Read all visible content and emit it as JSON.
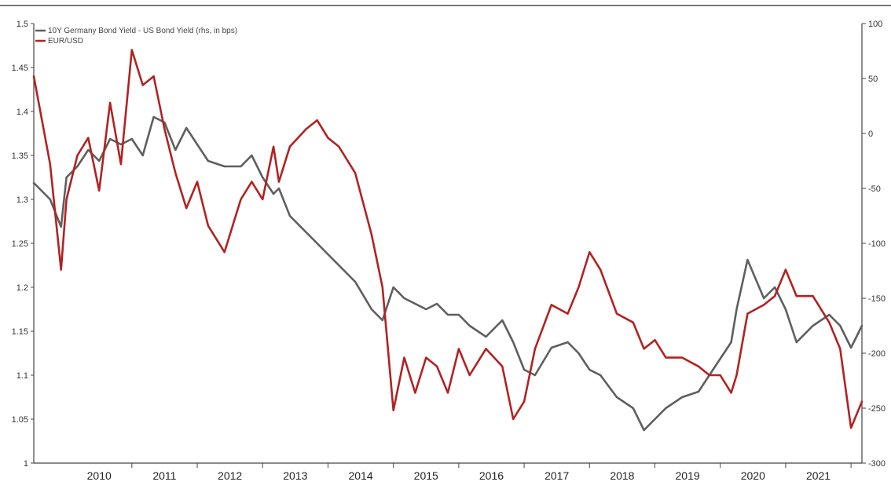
{
  "chart_data": {
    "type": "line",
    "title": "",
    "xlabel": "",
    "ylabel": "",
    "x_range": [
      "2009-07",
      "2022-03"
    ],
    "x_tick_labels": [
      "2010",
      "2011",
      "2012",
      "2013",
      "2014",
      "2015",
      "2016",
      "2017",
      "2018",
      "2019",
      "2020",
      "2021"
    ],
    "left_axis": {
      "range": [
        1,
        1.5
      ],
      "ticks": [
        "1",
        "1.05",
        "1.1",
        "1.15",
        "1.2",
        "1.25",
        "1.3",
        "1.35",
        "1.4",
        "1.45",
        "1.5"
      ]
    },
    "right_axis": {
      "range": [
        -300,
        100
      ],
      "ticks": [
        "100",
        "50",
        "0",
        "-50",
        "-100",
        "-150",
        "-200",
        "-250",
        "-300"
      ]
    },
    "grid": false,
    "legend_position": "top-left",
    "series": [
      {
        "name": "10Y Germany Bond Yield - US Bond Yield (rhs, in bps)",
        "axis": "right",
        "color": "#5f5f5f",
        "x": [
          "2009-07",
          "2009-10",
          "2009-12",
          "2010-01",
          "2010-03",
          "2010-05",
          "2010-07",
          "2010-09",
          "2010-11",
          "2011-01",
          "2011-03",
          "2011-05",
          "2011-07",
          "2011-09",
          "2011-11",
          "2012-01",
          "2012-03",
          "2012-06",
          "2012-09",
          "2012-11",
          "2013-01",
          "2013-03",
          "2013-04",
          "2013-06",
          "2013-09",
          "2013-11",
          "2014-01",
          "2014-03",
          "2014-06",
          "2014-09",
          "2014-11",
          "2015-01",
          "2015-03",
          "2015-05",
          "2015-07",
          "2015-09",
          "2015-11",
          "2016-01",
          "2016-03",
          "2016-06",
          "2016-09",
          "2016-11",
          "2017-01",
          "2017-03",
          "2017-06",
          "2017-09",
          "2017-11",
          "2018-01",
          "2018-03",
          "2018-06",
          "2018-09",
          "2018-11",
          "2019-01",
          "2019-03",
          "2019-06",
          "2019-09",
          "2019-11",
          "2020-01",
          "2020-03",
          "2020-04",
          "2020-06",
          "2020-09",
          "2020-11",
          "2021-01",
          "2021-03",
          "2021-06",
          "2021-09",
          "2021-11",
          "2022-01",
          "2022-03"
        ],
        "values": [
          -45,
          -60,
          -85,
          -40,
          -30,
          -15,
          -25,
          -5,
          -10,
          -5,
          -20,
          15,
          10,
          -15,
          5,
          -10,
          -25,
          -30,
          -30,
          -20,
          -40,
          -55,
          -50,
          -75,
          -90,
          -100,
          -110,
          -120,
          -135,
          -160,
          -170,
          -140,
          -150,
          -155,
          -160,
          -155,
          -165,
          -165,
          -175,
          -185,
          -170,
          -190,
          -215,
          -220,
          -195,
          -190,
          -200,
          -215,
          -220,
          -240,
          -250,
          -270,
          -260,
          -250,
          -240,
          -235,
          -220,
          -205,
          -190,
          -160,
          -115,
          -150,
          -140,
          -160,
          -190,
          -175,
          -165,
          -175,
          -195,
          -175
        ]
      },
      {
        "name": "EUR/USD",
        "axis": "left",
        "color": "#b22222",
        "x": [
          "2009-07",
          "2009-10",
          "2009-12",
          "2010-01",
          "2010-03",
          "2010-05",
          "2010-07",
          "2010-09",
          "2010-11",
          "2011-01",
          "2011-03",
          "2011-05",
          "2011-07",
          "2011-09",
          "2011-11",
          "2012-01",
          "2012-03",
          "2012-06",
          "2012-09",
          "2012-11",
          "2013-01",
          "2013-03",
          "2013-04",
          "2013-06",
          "2013-09",
          "2013-11",
          "2014-01",
          "2014-03",
          "2014-06",
          "2014-09",
          "2014-11",
          "2015-01",
          "2015-03",
          "2015-05",
          "2015-07",
          "2015-09",
          "2015-11",
          "2016-01",
          "2016-03",
          "2016-06",
          "2016-09",
          "2016-11",
          "2017-01",
          "2017-03",
          "2017-06",
          "2017-09",
          "2017-11",
          "2018-01",
          "2018-03",
          "2018-06",
          "2018-09",
          "2018-11",
          "2019-01",
          "2019-03",
          "2019-06",
          "2019-09",
          "2019-11",
          "2020-01",
          "2020-03",
          "2020-04",
          "2020-06",
          "2020-09",
          "2020-11",
          "2021-01",
          "2021-03",
          "2021-06",
          "2021-09",
          "2021-11",
          "2022-01",
          "2022-03"
        ],
        "values": [
          1.44,
          1.34,
          1.22,
          1.3,
          1.35,
          1.37,
          1.31,
          1.41,
          1.34,
          1.47,
          1.43,
          1.44,
          1.38,
          1.33,
          1.29,
          1.32,
          1.27,
          1.24,
          1.3,
          1.32,
          1.3,
          1.36,
          1.32,
          1.36,
          1.38,
          1.39,
          1.37,
          1.36,
          1.33,
          1.26,
          1.2,
          1.06,
          1.12,
          1.08,
          1.12,
          1.11,
          1.08,
          1.13,
          1.1,
          1.13,
          1.11,
          1.05,
          1.07,
          1.13,
          1.18,
          1.17,
          1.2,
          1.24,
          1.22,
          1.17,
          1.16,
          1.13,
          1.14,
          1.12,
          1.12,
          1.11,
          1.1,
          1.1,
          1.08,
          1.1,
          1.17,
          1.18,
          1.19,
          1.22,
          1.19,
          1.19,
          1.16,
          1.13,
          1.04,
          1.07
        ]
      }
    ]
  }
}
